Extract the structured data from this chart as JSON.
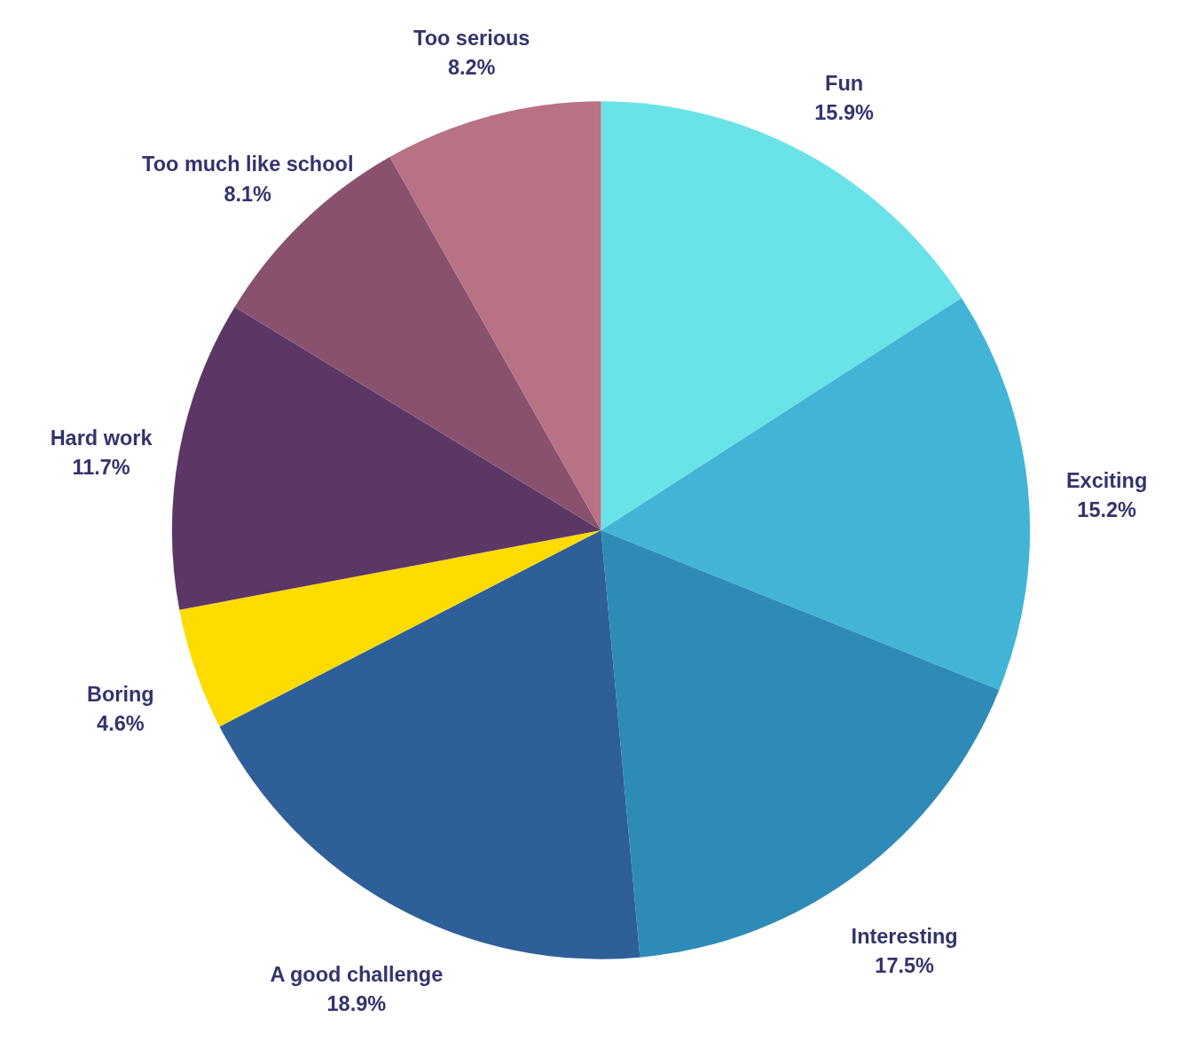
{
  "chart_data": {
    "type": "pie",
    "categories": [
      "Fun",
      "Exciting",
      "Interesting",
      "A good challenge",
      "Boring",
      "Hard work",
      "Too much like school",
      "Too serious"
    ],
    "values": [
      15.9,
      15.2,
      17.5,
      18.9,
      4.6,
      11.7,
      8.1,
      8.2
    ],
    "value_labels": [
      "15.9%",
      "15.2%",
      "17.5%",
      "18.9%",
      "4.6%",
      "11.7%",
      "8.1%",
      "8.2%"
    ],
    "colors": [
      "#6ae3e8",
      "#42b5d6",
      "#2e8bb8",
      "#2e5f98",
      "#ffdc00",
      "#5c3766",
      "#88526f",
      "#b87283"
    ]
  }
}
